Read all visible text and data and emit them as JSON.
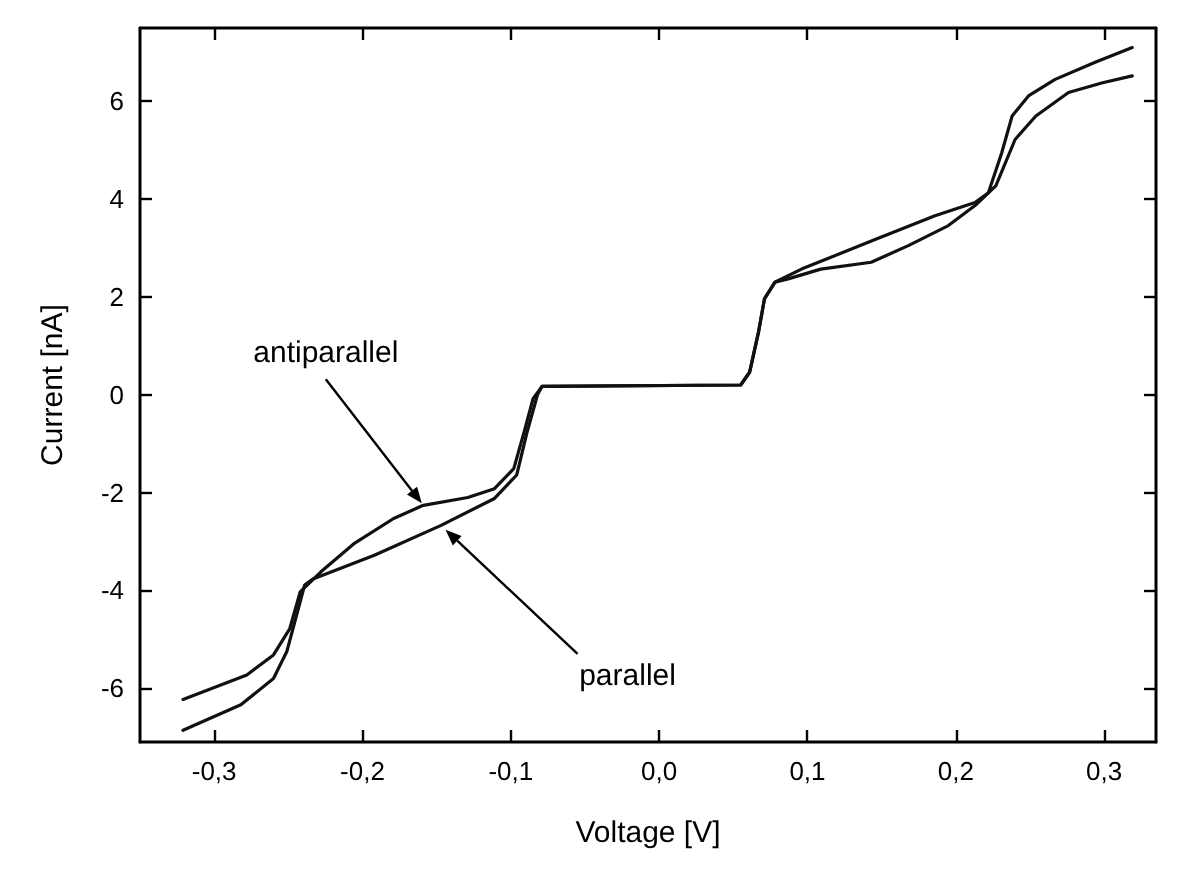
{
  "chart_data": {
    "type": "line",
    "xlabel": "Voltage [V]",
    "ylabel": "Current [nA]",
    "xlim": [
      -0.35,
      0.335
    ],
    "ylim": [
      -7.1,
      7.5
    ],
    "xticks": [
      {
        "value": -0.3,
        "label": "-0,3"
      },
      {
        "value": -0.2,
        "label": "-0,2"
      },
      {
        "value": -0.1,
        "label": "-0,1"
      },
      {
        "value": 0,
        "label": "0,0"
      },
      {
        "value": 0.1,
        "label": "0,1"
      },
      {
        "value": 0.2,
        "label": "0,2"
      },
      {
        "value": 0.3,
        "label": "0,3"
      }
    ],
    "yticks": [
      -6,
      -4,
      -2,
      0,
      2,
      4,
      6
    ],
    "grid": false,
    "marker": "none",
    "line_style": "solid",
    "annotations": [
      {
        "text": "antiparallel",
        "x": -0.16,
        "y": -2.22
      },
      {
        "text": "parallel",
        "x": -0.144,
        "y": -2.76
      }
    ],
    "series": [
      {
        "color": "#111111",
        "x": [
          -0.321,
          -0.278,
          -0.26,
          -0.249,
          -0.242,
          -0.228,
          -0.206,
          -0.179,
          -0.159,
          -0.129,
          -0.111,
          -0.098,
          -0.091,
          -0.085,
          -0.079,
          0.055,
          0.061,
          0.067,
          0.071,
          0.078,
          0.087,
          0.109,
          0.143,
          0.168,
          0.195,
          0.213,
          0.227,
          0.24,
          0.254,
          0.276,
          0.299,
          0.319
        ],
        "values": [
          -6.23,
          -5.73,
          -5.32,
          -4.78,
          -4.03,
          -3.62,
          -3.05,
          -2.53,
          -2.26,
          -2.1,
          -1.92,
          -1.51,
          -0.76,
          -0.08,
          0.17,
          0.2,
          0.46,
          1.28,
          1.96,
          2.3,
          2.37,
          2.57,
          2.71,
          3.05,
          3.46,
          3.87,
          4.27,
          5.22,
          5.7,
          6.18,
          6.38,
          6.52
        ]
      },
      {
        "color": "#111111",
        "x": [
          -0.321,
          -0.282,
          -0.26,
          -0.251,
          -0.245,
          -0.239,
          -0.233,
          -0.192,
          -0.147,
          -0.111,
          -0.096,
          -0.089,
          -0.082,
          -0.079,
          0.055,
          0.061,
          0.067,
          0.071,
          0.078,
          0.096,
          0.146,
          0.186,
          0.213,
          0.222,
          0.231,
          0.238,
          0.249,
          0.267,
          0.294,
          0.319
        ],
        "values": [
          -6.86,
          -6.34,
          -5.8,
          -5.25,
          -4.57,
          -3.89,
          -3.76,
          -3.28,
          -2.67,
          -2.12,
          -1.64,
          -0.76,
          0.0,
          0.17,
          0.2,
          0.46,
          1.28,
          1.96,
          2.3,
          2.57,
          3.18,
          3.66,
          3.93,
          4.13,
          4.95,
          5.7,
          6.11,
          6.45,
          6.8,
          7.1
        ]
      }
    ]
  }
}
